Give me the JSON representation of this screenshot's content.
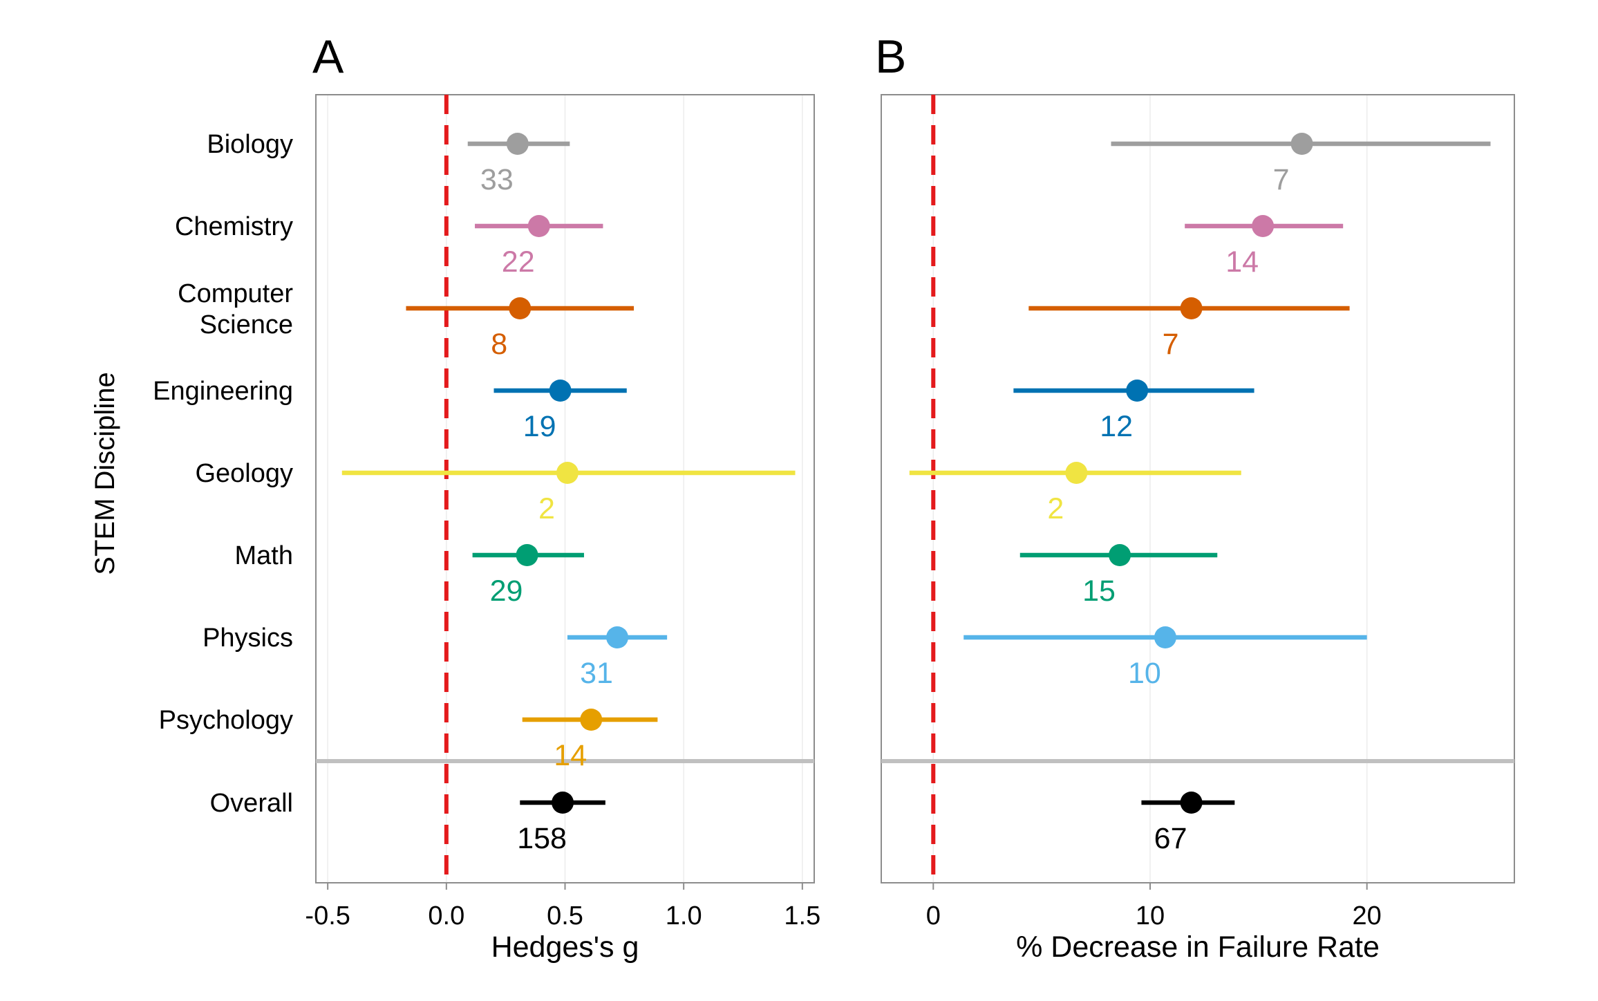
{
  "chart_data": [
    {
      "type": "forest",
      "panel_label": "A",
      "xlabel": "Hedges's g",
      "ylabel": "STEM Discipline",
      "xlim": [
        -0.55,
        1.55
      ],
      "xticks": [
        -0.5,
        0.0,
        0.5,
        1.0,
        1.5
      ],
      "xtick_labels": [
        "-0.5",
        "0.0",
        "0.5",
        "1.0",
        "1.5"
      ],
      "reference_line": 0,
      "reference_line_style": "dashed",
      "grid": "vertical major",
      "rows": [
        {
          "label": "Biology",
          "estimate": 0.3,
          "ci": [
            0.09,
            0.52
          ],
          "n": "33",
          "color": "#9e9e9e"
        },
        {
          "label": "Chemistry",
          "estimate": 0.39,
          "ci": [
            0.12,
            0.66
          ],
          "n": "22",
          "color": "#cc79a7"
        },
        {
          "label": "Computer\nScience",
          "estimate": 0.31,
          "ci": [
            -0.17,
            0.79
          ],
          "n": "8",
          "color": "#d55e00"
        },
        {
          "label": "Engineering",
          "estimate": 0.48,
          "ci": [
            0.2,
            0.76
          ],
          "n": "19",
          "color": "#0072b2"
        },
        {
          "label": "Geology",
          "estimate": 0.51,
          "ci": [
            -0.44,
            1.47
          ],
          "n": "2",
          "color": "#f0e442"
        },
        {
          "label": "Math",
          "estimate": 0.34,
          "ci": [
            0.11,
            0.58
          ],
          "n": "29",
          "color": "#009e73"
        },
        {
          "label": "Physics",
          "estimate": 0.72,
          "ci": [
            0.51,
            0.93
          ],
          "n": "31",
          "color": "#56b4e9"
        },
        {
          "label": "Psychology",
          "estimate": 0.61,
          "ci": [
            0.32,
            0.89
          ],
          "n": "14",
          "color": "#e69f00"
        },
        {
          "label": "Overall",
          "estimate": 0.49,
          "ci": [
            0.31,
            0.67
          ],
          "n": "158",
          "color": "#000000"
        }
      ]
    },
    {
      "type": "forest",
      "panel_label": "B",
      "xlabel": "% Decrease in Failure Rate",
      "ylabel": "",
      "xlim": [
        -2.4,
        26.8
      ],
      "xticks": [
        0,
        10,
        20
      ],
      "xtick_labels": [
        "0",
        "10",
        "20"
      ],
      "reference_line": 0,
      "reference_line_style": "dashed",
      "grid": "vertical major",
      "rows": [
        {
          "label": "Biology",
          "estimate": 17.0,
          "ci": [
            8.2,
            25.7
          ],
          "n": "7",
          "color": "#9e9e9e"
        },
        {
          "label": "Chemistry",
          "estimate": 15.2,
          "ci": [
            11.6,
            18.9
          ],
          "n": "14",
          "color": "#cc79a7"
        },
        {
          "label": "Computer\nScience",
          "estimate": 11.9,
          "ci": [
            4.4,
            19.2
          ],
          "n": "7",
          "color": "#d55e00"
        },
        {
          "label": "Engineering",
          "estimate": 9.4,
          "ci": [
            3.7,
            14.8
          ],
          "n": "12",
          "color": "#0072b2"
        },
        {
          "label": "Geology",
          "estimate": 6.6,
          "ci": [
            -1.1,
            14.2
          ],
          "n": "2",
          "color": "#f0e442"
        },
        {
          "label": "Math",
          "estimate": 8.6,
          "ci": [
            4.0,
            13.1
          ],
          "n": "15",
          "color": "#009e73"
        },
        {
          "label": "Physics",
          "estimate": 10.7,
          "ci": [
            1.4,
            20.0
          ],
          "n": "10",
          "color": "#56b4e9"
        },
        {
          "label": "Psychology",
          "estimate": null,
          "ci": null,
          "n": "",
          "color": "#e69f00"
        },
        {
          "label": "Overall",
          "estimate": 11.9,
          "ci": [
            9.6,
            13.9
          ],
          "n": "67",
          "color": "#000000"
        }
      ]
    }
  ]
}
